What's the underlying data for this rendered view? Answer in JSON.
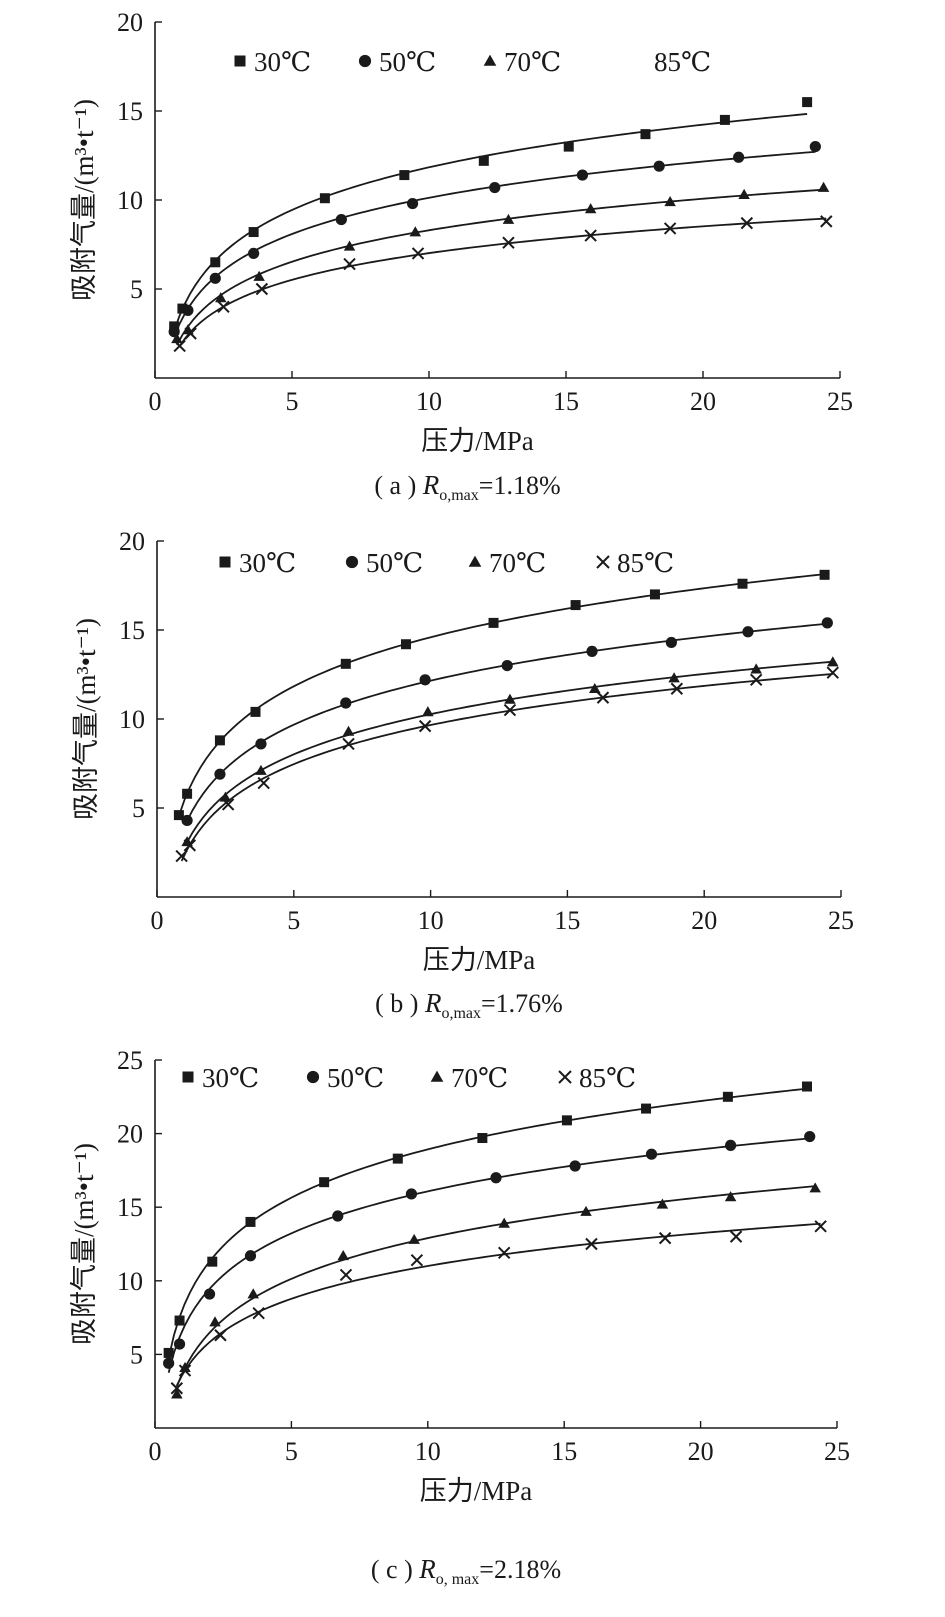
{
  "chart_data": [
    {
      "type": "scatter",
      "caption": {
        "prefix": "( a ) ",
        "symbol": "R",
        "sub": "o,max",
        "suffix": "=1.18%"
      },
      "xlabel": "压力/MPa",
      "ylabel": "吸附气量/(m³•t⁻¹)",
      "xlim": [
        0,
        25
      ],
      "ylim": [
        0,
        20
      ],
      "xticks": [
        0,
        5,
        10,
        15,
        20,
        25
      ],
      "yticks": [
        5,
        10,
        15,
        20
      ],
      "legend_position": "top",
      "fit_lines": true,
      "series": [
        {
          "name": "30℃",
          "marker": "square",
          "x": [
            0.7,
            1.0,
            2.2,
            3.6,
            6.2,
            9.1,
            12.0,
            15.1,
            17.9,
            20.8,
            23.8
          ],
          "y": [
            2.9,
            3.9,
            6.5,
            8.2,
            10.1,
            11.4,
            12.2,
            13.0,
            13.7,
            14.5,
            15.5
          ]
        },
        {
          "name": "50℃",
          "marker": "circle",
          "x": [
            0.7,
            1.2,
            2.2,
            3.6,
            6.8,
            9.4,
            12.4,
            15.6,
            18.4,
            21.3,
            24.1
          ],
          "y": [
            2.6,
            3.8,
            5.6,
            7.0,
            8.9,
            9.8,
            10.7,
            11.4,
            11.9,
            12.4,
            13.0
          ]
        },
        {
          "name": "70℃",
          "marker": "triangle",
          "x": [
            0.8,
            1.2,
            2.4,
            3.8,
            7.1,
            9.5,
            12.9,
            15.9,
            18.8,
            21.5,
            24.4
          ],
          "y": [
            2.2,
            2.7,
            4.5,
            5.7,
            7.4,
            8.2,
            8.9,
            9.5,
            9.9,
            10.3,
            10.7
          ]
        },
        {
          "name": "85℃",
          "marker": "x",
          "legend_marker_visible": false,
          "x": [
            0.9,
            1.3,
            2.5,
            3.9,
            7.1,
            9.6,
            12.9,
            15.9,
            18.8,
            21.6,
            24.5
          ],
          "y": [
            1.8,
            2.5,
            4.0,
            5.0,
            6.4,
            7.0,
            7.6,
            8.0,
            8.4,
            8.7,
            8.8
          ]
        }
      ]
    },
    {
      "type": "scatter",
      "caption": {
        "prefix": "( b ) ",
        "symbol": "R",
        "sub": "o,max",
        "suffix": "=1.76%"
      },
      "xlabel": "压力/MPa",
      "ylabel": "吸附气量/(m³•t⁻¹)",
      "xlim": [
        0,
        25
      ],
      "ylim": [
        0,
        20
      ],
      "xticks": [
        0,
        5,
        10,
        15,
        20,
        25
      ],
      "yticks": [
        5,
        10,
        15,
        20
      ],
      "legend_position": "top",
      "fit_lines": true,
      "series": [
        {
          "name": "30℃",
          "marker": "square",
          "x": [
            0.8,
            1.1,
            2.3,
            3.6,
            6.9,
            9.1,
            12.3,
            15.3,
            18.2,
            21.4,
            24.4
          ],
          "y": [
            4.6,
            5.8,
            8.8,
            10.4,
            13.1,
            14.2,
            15.4,
            16.4,
            17.0,
            17.6,
            18.1
          ]
        },
        {
          "name": "50℃",
          "marker": "circle",
          "x": [
            1.1,
            2.3,
            3.8,
            6.9,
            9.8,
            12.8,
            15.9,
            18.8,
            21.6,
            24.5
          ],
          "y": [
            4.3,
            6.9,
            8.6,
            10.9,
            12.2,
            13.0,
            13.8,
            14.3,
            14.9,
            15.4
          ]
        },
        {
          "name": "70℃",
          "marker": "triangle",
          "x": [
            1.1,
            2.5,
            3.8,
            7.0,
            9.9,
            12.9,
            16.0,
            18.9,
            21.9,
            24.7
          ],
          "y": [
            3.1,
            5.6,
            7.1,
            9.3,
            10.4,
            11.1,
            11.7,
            12.3,
            12.8,
            13.2
          ]
        },
        {
          "name": "85℃",
          "marker": "x",
          "x": [
            0.9,
            1.2,
            2.6,
            3.9,
            7.0,
            9.8,
            12.9,
            16.3,
            19.0,
            21.9,
            24.7
          ],
          "y": [
            2.3,
            2.9,
            5.2,
            6.4,
            8.6,
            9.6,
            10.5,
            11.2,
            11.7,
            12.2,
            12.6
          ]
        }
      ]
    },
    {
      "type": "scatter",
      "caption": {
        "prefix": "( c ) ",
        "symbol": "R",
        "sub": "o, max",
        "suffix": "=2.18%"
      },
      "xlabel": "压力/MPa",
      "ylabel": "吸附气量/(m³•t⁻¹)",
      "xlim": [
        0,
        25
      ],
      "ylim": [
        0,
        25
      ],
      "xticks": [
        0,
        5,
        10,
        15,
        20,
        25
      ],
      "yticks": [
        5,
        10,
        15,
        20,
        25
      ],
      "legend_position": "top",
      "fit_lines": true,
      "series": [
        {
          "name": "30℃",
          "marker": "square",
          "x": [
            0.5,
            0.9,
            2.1,
            3.5,
            6.2,
            8.9,
            12.0,
            15.1,
            18.0,
            21.0,
            23.9
          ],
          "y": [
            5.1,
            7.3,
            11.3,
            14.0,
            16.7,
            18.3,
            19.7,
            20.9,
            21.7,
            22.5,
            23.2
          ]
        },
        {
          "name": "50℃",
          "marker": "circle",
          "x": [
            0.5,
            0.9,
            2.0,
            3.5,
            6.7,
            9.4,
            12.5,
            15.4,
            18.2,
            21.1,
            24.0
          ],
          "y": [
            4.4,
            5.7,
            9.1,
            11.7,
            14.4,
            15.9,
            17.0,
            17.8,
            18.6,
            19.2,
            19.8
          ]
        },
        {
          "name": "70℃",
          "marker": "triangle",
          "x": [
            0.8,
            1.1,
            2.2,
            3.6,
            6.9,
            9.5,
            12.8,
            15.8,
            18.6,
            21.1,
            24.2
          ],
          "y": [
            2.3,
            4.1,
            7.2,
            9.1,
            11.7,
            12.8,
            13.9,
            14.7,
            15.2,
            15.7,
            16.3
          ]
        },
        {
          "name": "85℃",
          "marker": "x",
          "x": [
            0.8,
            1.1,
            2.4,
            3.8,
            7.0,
            9.6,
            12.8,
            16.0,
            18.7,
            21.3,
            24.4
          ],
          "y": [
            2.7,
            3.9,
            6.3,
            7.8,
            10.4,
            11.4,
            11.9,
            12.5,
            12.9,
            13.0,
            13.7
          ]
        }
      ]
    }
  ]
}
